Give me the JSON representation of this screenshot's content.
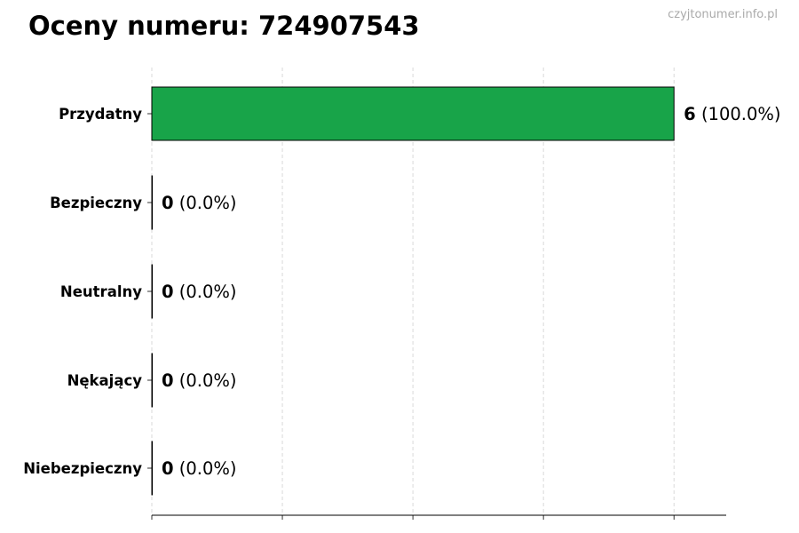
{
  "chart_data": {
    "type": "bar",
    "orientation": "horizontal",
    "title": "Oceny numeru: 724907543",
    "watermark": "czyjtonumer.info.pl",
    "categories": [
      "Przydatny",
      "Bezpieczny",
      "Neutralny",
      "Nękający",
      "Niebezpieczny"
    ],
    "values": [
      6,
      0,
      0,
      0,
      0
    ],
    "value_labels": [
      {
        "count": "6",
        "percent": "(100.0%)"
      },
      {
        "count": "0",
        "percent": "(0.0%)"
      },
      {
        "count": "0",
        "percent": "(0.0%)"
      },
      {
        "count": "0",
        "percent": "(0.0%)"
      },
      {
        "count": "0",
        "percent": "(0.0%)"
      }
    ],
    "xlim": [
      0,
      6.6
    ],
    "xticks": [
      0,
      1.5,
      3,
      4.5,
      6
    ],
    "xtick_labels_shown": false,
    "grid": "vertical dashed",
    "colors": {
      "bar": "#18a449",
      "edge": "#000000",
      "grid": "#d0d0d0",
      "watermark": "#aaaaaa"
    }
  }
}
